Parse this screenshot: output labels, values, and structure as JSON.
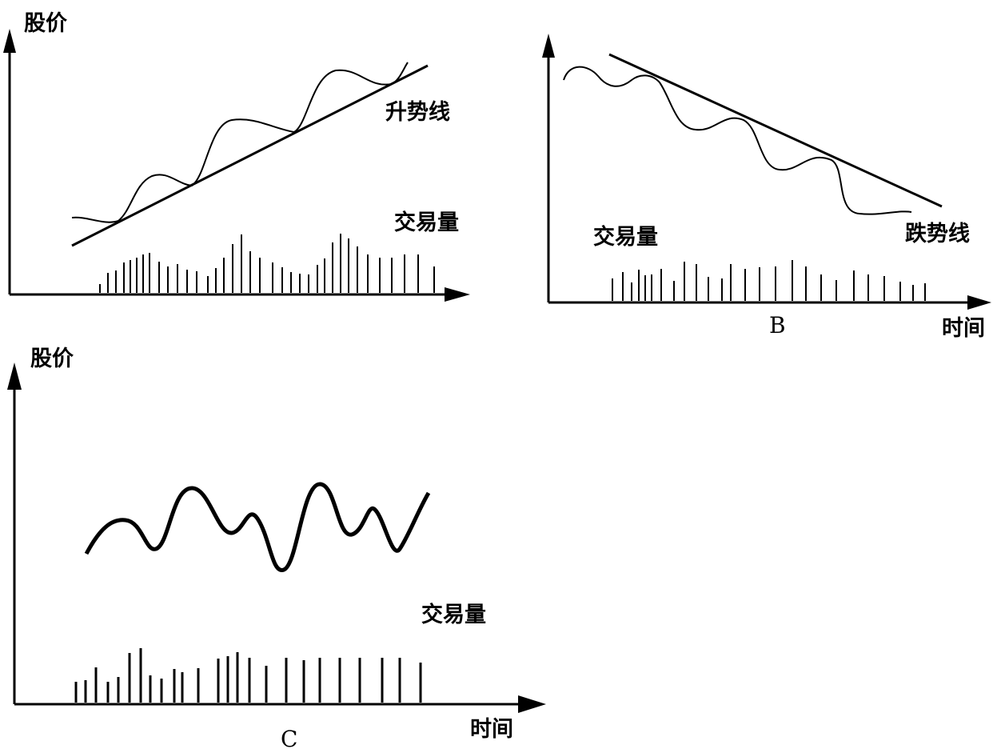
{
  "panel_a": {
    "y_axis_label": "股价",
    "trend_label": "升势线",
    "volume_label": "交易量"
  },
  "panel_b": {
    "caption": "B",
    "volume_label": "交易量",
    "trend_label": "跌势线",
    "x_axis_label": "时间"
  },
  "panel_c": {
    "y_axis_label": "股价",
    "volume_label": "交易量",
    "caption": "C",
    "x_axis_label": "时间"
  }
}
